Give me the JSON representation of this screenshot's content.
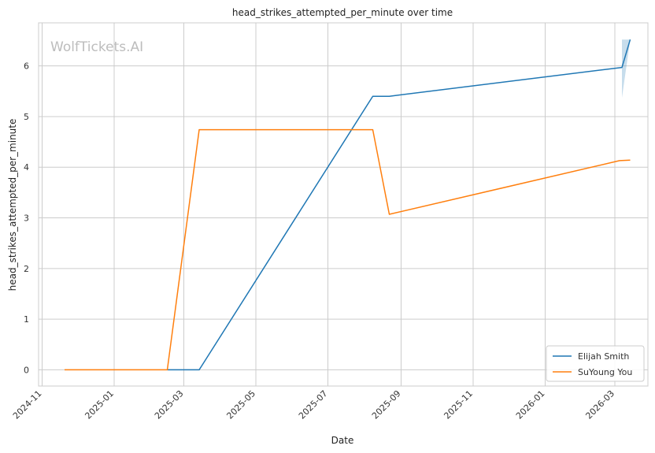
{
  "chart_data": {
    "type": "line",
    "title": "head_strikes_attempted_per_minute over time",
    "xlabel": "Date",
    "ylabel": "head_strikes_attempted_per_minute",
    "watermark": "WolfTickets.AI",
    "x_ticks": [
      "2024-11",
      "2025-01",
      "2025-03",
      "2025-05",
      "2025-07",
      "2025-09",
      "2025-11",
      "2026-01",
      "2026-03"
    ],
    "y_ticks": [
      0,
      1,
      2,
      3,
      4,
      5,
      6
    ],
    "xlim": [
      "2024-10-29",
      "2026-03-29"
    ],
    "ylim": [
      -0.32,
      6.85
    ],
    "grid": true,
    "legend_position": "bottom-right",
    "series": [
      {
        "name": "Elijah Smith",
        "color": "#1f77b4",
        "points": [
          {
            "x": "2025-02-15",
            "y": 0
          },
          {
            "x": "2025-03-14",
            "y": 0
          },
          {
            "x": "2025-08-08",
            "y": 5.4
          },
          {
            "x": "2025-08-22",
            "y": 5.4
          },
          {
            "x": "2026-03-07",
            "y": 5.97
          },
          {
            "x": "2026-03-14",
            "y": 6.52
          }
        ],
        "band": [
          {
            "x": "2026-03-07",
            "low": 5.37,
            "high": 6.52
          },
          {
            "x": "2026-03-14",
            "low": 6.52,
            "high": 6.52
          }
        ]
      },
      {
        "name": "SuYoung You",
        "color": "#ff7f0e",
        "points": [
          {
            "x": "2024-11-20",
            "y": 0
          },
          {
            "x": "2025-02-15",
            "y": 0
          },
          {
            "x": "2025-03-14",
            "y": 4.74
          },
          {
            "x": "2025-08-08",
            "y": 4.74
          },
          {
            "x": "2025-08-22",
            "y": 3.07
          },
          {
            "x": "2026-03-05",
            "y": 4.13
          },
          {
            "x": "2026-03-14",
            "y": 4.14
          }
        ]
      }
    ]
  }
}
